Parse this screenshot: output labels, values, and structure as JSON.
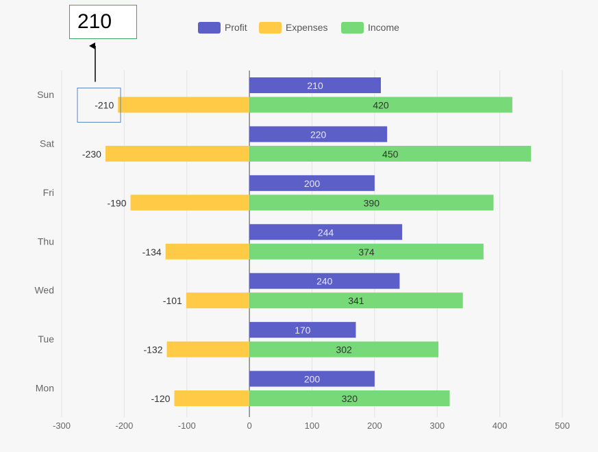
{
  "annotation": {
    "answer": "210"
  },
  "chart_data": {
    "type": "bar",
    "orientation": "horizontal",
    "categories": [
      "Sun",
      "Sat",
      "Fri",
      "Thu",
      "Wed",
      "Tue",
      "Mon"
    ],
    "series": [
      {
        "name": "Profit",
        "color": "#5b5fc7",
        "values": [
          210,
          220,
          200,
          244,
          240,
          170,
          200
        ]
      },
      {
        "name": "Expenses",
        "color": "#ffcb47",
        "values": [
          -210,
          -230,
          -190,
          -134,
          -101,
          -132,
          -120
        ]
      },
      {
        "name": "Income",
        "color": "#77d977",
        "values": [
          420,
          450,
          390,
          374,
          341,
          302,
          320
        ]
      }
    ],
    "xlim": [
      -300,
      500
    ],
    "xticks": [
      -300,
      -200,
      -100,
      0,
      100,
      200,
      300,
      400,
      500
    ],
    "grid": true,
    "legend": "top-center",
    "highlight": {
      "category": "Sun",
      "series": "Expenses"
    }
  }
}
